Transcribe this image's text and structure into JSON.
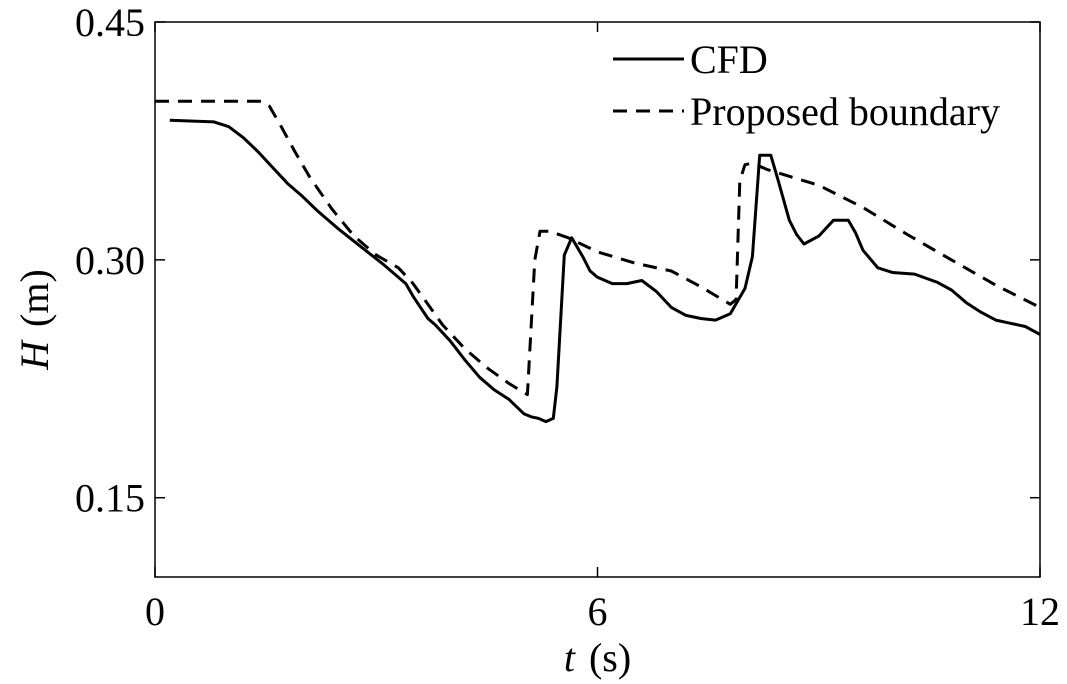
{
  "chart_data": {
    "type": "line",
    "xlabel": {
      "symbol": "t",
      "unit": "(s)"
    },
    "ylabel": {
      "symbol": "H",
      "unit": "(m)"
    },
    "xlim": [
      0,
      12
    ],
    "ylim": [
      0.1,
      0.45
    ],
    "xticks": [
      0,
      6,
      12
    ],
    "xtick_labels": [
      "0",
      "6",
      "12"
    ],
    "yticks": [
      0.15,
      0.3,
      0.45
    ],
    "ytick_labels": [
      "0.15",
      "0.30",
      "0.45"
    ],
    "grid": false,
    "legend_position": "top-right",
    "series": [
      {
        "name": "CFD",
        "style": "solid",
        "color": "#000000",
        "x": [
          0.2,
          0.8,
          1.0,
          1.2,
          1.4,
          1.6,
          1.8,
          2.0,
          2.2,
          2.5,
          2.8,
          3.1,
          3.4,
          3.5,
          3.6,
          3.7,
          3.8,
          4.0,
          4.2,
          4.4,
          4.6,
          4.8,
          5.0,
          5.1,
          5.2,
          5.3,
          5.4,
          5.45,
          5.55,
          5.65,
          5.8,
          5.9,
          6.0,
          6.2,
          6.4,
          6.6,
          6.8,
          7.0,
          7.2,
          7.4,
          7.6,
          7.8,
          8.0,
          8.1,
          8.2,
          8.35,
          8.45,
          8.6,
          8.7,
          8.8,
          9.0,
          9.2,
          9.4,
          9.5,
          9.6,
          9.8,
          10.0,
          10.3,
          10.6,
          10.8,
          11.0,
          11.2,
          11.4,
          11.6,
          11.8,
          12.0
        ],
        "values": [
          0.388,
          0.387,
          0.384,
          0.377,
          0.368,
          0.358,
          0.348,
          0.34,
          0.331,
          0.319,
          0.308,
          0.297,
          0.285,
          0.277,
          0.27,
          0.263,
          0.259,
          0.249,
          0.237,
          0.226,
          0.218,
          0.212,
          0.203,
          0.201,
          0.2,
          0.198,
          0.2,
          0.22,
          0.303,
          0.314,
          0.302,
          0.293,
          0.289,
          0.285,
          0.285,
          0.287,
          0.28,
          0.27,
          0.265,
          0.263,
          0.262,
          0.266,
          0.282,
          0.302,
          0.366,
          0.366,
          0.35,
          0.325,
          0.316,
          0.31,
          0.315,
          0.325,
          0.325,
          0.317,
          0.306,
          0.295,
          0.292,
          0.291,
          0.286,
          0.281,
          0.273,
          0.267,
          0.262,
          0.26,
          0.258,
          0.253
        ]
      },
      {
        "name": "Proposed boundary",
        "style": "dashed",
        "color": "#000000",
        "x": [
          0,
          0.5,
          1.0,
          1.45,
          1.55,
          1.7,
          1.9,
          2.1,
          2.4,
          2.7,
          3.0,
          3.3,
          3.5,
          3.7,
          3.9,
          4.2,
          4.5,
          4.8,
          5.05,
          5.15,
          5.22,
          5.35,
          5.6,
          6.0,
          6.5,
          7.0,
          7.4,
          7.8,
          7.88,
          7.93,
          8.0,
          8.1,
          8.3,
          9.0,
          9.6,
          10.2,
          10.8,
          11.4,
          12.0
        ],
        "values": [
          0.4,
          0.4,
          0.4,
          0.4,
          0.397,
          0.385,
          0.368,
          0.352,
          0.332,
          0.315,
          0.303,
          0.295,
          0.285,
          0.272,
          0.259,
          0.244,
          0.232,
          0.222,
          0.215,
          0.3,
          0.318,
          0.318,
          0.314,
          0.305,
          0.298,
          0.293,
          0.283,
          0.272,
          0.275,
          0.35,
          0.36,
          0.361,
          0.357,
          0.347,
          0.333,
          0.316,
          0.3,
          0.284,
          0.27
        ]
      }
    ]
  }
}
